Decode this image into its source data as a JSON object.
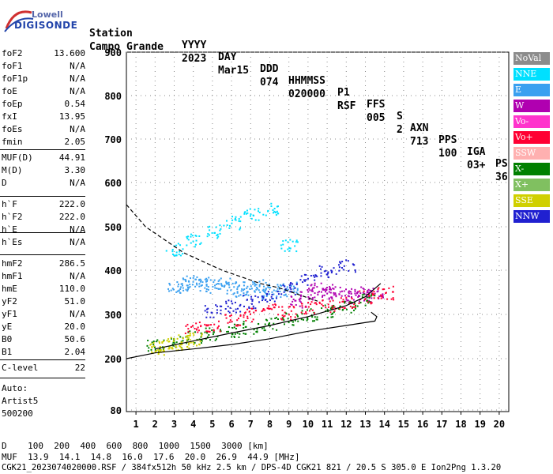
{
  "logo": {
    "line1": "Lowell",
    "line2": "DIGISONDE"
  },
  "header": {
    "row1": [
      "Station",
      "YYYY",
      "DAY",
      "DDD",
      "HHMMSS",
      "P1",
      "FFS",
      "S",
      "AXN",
      "PPS",
      "IGA",
      "PS"
    ],
    "row2": [
      "Campo Grande",
      "2023",
      "Mar15",
      "074",
      "020000",
      "RSF",
      "005",
      "2",
      "713",
      "100",
      "03+",
      "36"
    ]
  },
  "params_group1": [
    {
      "label": "foF2",
      "value": "13.600"
    },
    {
      "label": "foF1",
      "value": "N/A"
    },
    {
      "label": "foF1p",
      "value": "N/A"
    },
    {
      "label": "foE",
      "value": "N/A"
    },
    {
      "label": "foEp",
      "value": "0.54"
    },
    {
      "label": "fxI",
      "value": "13.95"
    },
    {
      "label": "foEs",
      "value": "N/A"
    },
    {
      "label": "fmin",
      "value": "2.05"
    }
  ],
  "params_group2": [
    {
      "label": "MUF(D)",
      "value": "44.91"
    },
    {
      "label": "M(D)",
      "value": "3.30"
    },
    {
      "label": "D",
      "value": "N/A"
    }
  ],
  "params_group3": [
    {
      "label": "h`F",
      "value": "222.0"
    },
    {
      "label": "h`F2",
      "value": "222.0"
    },
    {
      "label": "h`E",
      "value": "N/A"
    },
    {
      "label": "h`Es",
      "value": "N/A"
    }
  ],
  "params_group4": [
    {
      "label": "hmF2",
      "value": "286.5"
    },
    {
      "label": "hmF1",
      "value": "N/A"
    },
    {
      "label": "hmE",
      "value": "110.0"
    },
    {
      "label": "yF2",
      "value": "51.0"
    },
    {
      "label": "yF1",
      "value": "N/A"
    },
    {
      "label": "yE",
      "value": "20.0"
    },
    {
      "label": "B0",
      "value": "50.6"
    },
    {
      "label": "B1",
      "value": "2.04"
    }
  ],
  "params_group5": [
    {
      "label": "C-level",
      "value": "22"
    }
  ],
  "auto": {
    "line1": "Auto:",
    "line2": "Artist5",
    "line3": "500200"
  },
  "legend": [
    {
      "label": "NoVal",
      "color": "#8c8c8c"
    },
    {
      "label": "NNE",
      "color": "#00e0ff"
    },
    {
      "label": "E",
      "color": "#3aa0f0"
    },
    {
      "label": "W",
      "color": "#b000b0"
    },
    {
      "label": "Vo-",
      "color": "#ff33cc"
    },
    {
      "label": "Vo+",
      "color": "#ff0033"
    },
    {
      "label": "SSW",
      "color": "#ffb0b0"
    },
    {
      "label": "X-",
      "color": "#008000"
    },
    {
      "label": "X+",
      "color": "#80c060"
    },
    {
      "label": "SSE",
      "color": "#d0d000"
    },
    {
      "label": "NNW",
      "color": "#2020d0"
    }
  ],
  "chart_data": {
    "type": "scatter",
    "x_ticks": [
      "1",
      "2",
      "3",
      "4",
      "5",
      "6",
      "7",
      "8",
      "9",
      "10",
      "11",
      "12",
      "13",
      "14",
      "15",
      "16",
      "17",
      "18",
      "19",
      "20"
    ],
    "y_ticks": [
      "900",
      "800",
      "700",
      "600",
      "500",
      "400",
      "300",
      "200",
      "80"
    ],
    "xlim": [
      0.5,
      20.5
    ],
    "ylim": [
      80,
      900
    ],
    "grid": true,
    "legend_placement": "right",
    "series": [
      {
        "name": "E",
        "color": "#3aa0f0",
        "x": [
          3,
          3.5,
          4,
          4.5,
          5,
          5.5,
          6,
          6.5,
          7,
          7.5,
          8,
          8.5,
          9
        ],
        "y": [
          360,
          370,
          375,
          370,
          365,
          370,
          360,
          355,
          360,
          365,
          350,
          355,
          360
        ]
      },
      {
        "name": "NNE",
        "color": "#00e0ff",
        "x": [
          3,
          4,
          5,
          6,
          7,
          8,
          9
        ],
        "y": [
          450,
          470,
          490,
          510,
          530,
          540,
          460
        ]
      },
      {
        "name": "W",
        "color": "#b000b0",
        "x": [
          9.5,
          10,
          10.5,
          11,
          11.5,
          12,
          12.5,
          13,
          13.5
        ],
        "y": [
          330,
          350,
          360,
          355,
          350,
          340,
          345,
          350,
          345
        ]
      },
      {
        "name": "X-",
        "color": "#008000",
        "x": [
          2,
          3,
          4,
          5,
          6,
          7,
          8,
          9,
          10,
          11,
          12,
          13
        ],
        "y": [
          230,
          240,
          250,
          258,
          265,
          272,
          280,
          290,
          300,
          310,
          320,
          335
        ]
      },
      {
        "name": "SSE",
        "color": "#d0d000",
        "x": [
          2,
          2.5,
          3,
          3.5,
          4
        ],
        "y": [
          225,
          230,
          235,
          240,
          245
        ]
      },
      {
        "name": "NNW",
        "color": "#2020d0",
        "x": [
          5,
          6,
          7,
          8,
          9,
          10,
          11,
          12
        ],
        "y": [
          310,
          320,
          330,
          340,
          360,
          380,
          400,
          410
        ]
      },
      {
        "name": "Vo+",
        "color": "#ff0033",
        "x": [
          4,
          5,
          6,
          7,
          8,
          9,
          10,
          11,
          12,
          13,
          14
        ],
        "y": [
          270,
          275,
          290,
          300,
          310,
          305,
          315,
          320,
          330,
          340,
          350
        ]
      }
    ]
  },
  "bottom": {
    "d_row": "D    100  200  400  600  800  1000  1500  3000 [km]",
    "muf_row": "MUF  13.9  14.1  14.8  16.0  17.6  20.0  26.9  44.9 [MHz]",
    "info_row": "CGK21_2023074020000.RSF / 384fx512h 50 kHz 2.5 km / DPS-4D CGK21 821 / 20.5 S 305.0 E Ion2Png 1.3.20"
  }
}
